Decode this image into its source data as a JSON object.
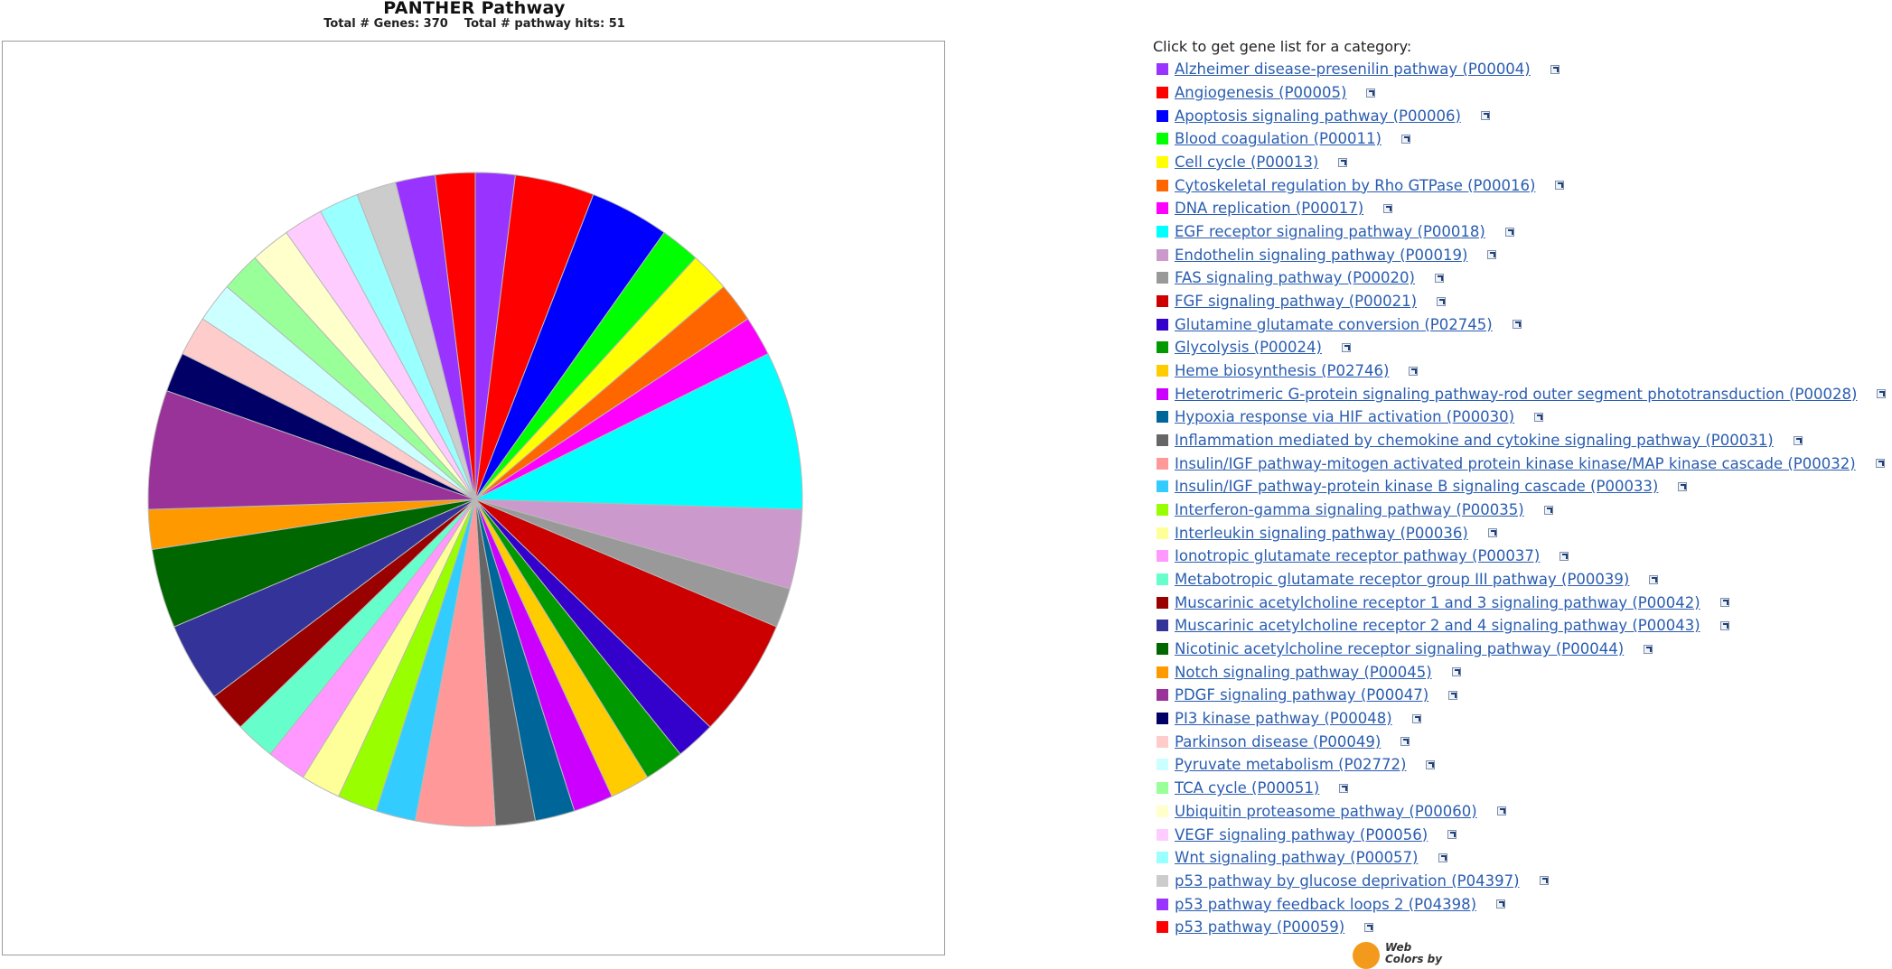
{
  "chart_data": {
    "type": "pie",
    "title": "PANTHER Pathway",
    "subtitle": "Total # Genes: 370    Total # pathway hits: 51",
    "slices": [
      {
        "label": "Alzheimer disease-presenilin pathway (P00004)",
        "value": 1,
        "color": "#9933FF"
      },
      {
        "label": "Angiogenesis (P00005)",
        "value": 2,
        "color": "#FF0000"
      },
      {
        "label": "Apoptosis signaling pathway (P00006)",
        "value": 2,
        "color": "#0000FF"
      },
      {
        "label": "Blood coagulation (P00011)",
        "value": 1,
        "color": "#00FF00"
      },
      {
        "label": "Cell cycle (P00013)",
        "value": 1,
        "color": "#FFFF00"
      },
      {
        "label": "Cytoskeletal regulation by Rho GTPase (P00016)",
        "value": 1,
        "color": "#FF6600"
      },
      {
        "label": "DNA replication (P00017)",
        "value": 1,
        "color": "#FF00FF"
      },
      {
        "label": "EGF receptor signaling pathway (P00018)",
        "value": 4,
        "color": "#00FFFF"
      },
      {
        "label": "Endothelin signaling pathway (P00019)",
        "value": 2,
        "color": "#CC99CC"
      },
      {
        "label": "FAS signaling pathway (P00020)",
        "value": 1,
        "color": "#999999"
      },
      {
        "label": "FGF signaling pathway (P00021)",
        "value": 3,
        "color": "#CC0000"
      },
      {
        "label": "Glutamine glutamate conversion (P02745)",
        "value": 1,
        "color": "#3300CC"
      },
      {
        "label": "Glycolysis (P00024)",
        "value": 1,
        "color": "#009900"
      },
      {
        "label": "Heme biosynthesis (P02746)",
        "value": 1,
        "color": "#FFCC00"
      },
      {
        "label": "Heterotrimeric G-protein signaling pathway-rod outer segment phototransduction (P00028)",
        "value": 1,
        "color": "#CC00FF"
      },
      {
        "label": "Hypoxia response via HIF activation (P00030)",
        "value": 1,
        "color": "#006699"
      },
      {
        "label": "Inflammation mediated by chemokine and cytokine signaling pathway (P00031)",
        "value": 1,
        "color": "#666666"
      },
      {
        "label": "Insulin/IGF pathway-mitogen activated protein kinase kinase/MAP kinase cascade (P00032)",
        "value": 2,
        "color": "#FF9999"
      },
      {
        "label": "Insulin/IGF pathway-protein kinase B signaling cascade (P00033)",
        "value": 1,
        "color": "#33CCFF"
      },
      {
        "label": "Interferon-gamma signaling pathway (P00035)",
        "value": 1,
        "color": "#99FF00"
      },
      {
        "label": "Interleukin signaling pathway (P00036)",
        "value": 1,
        "color": "#FFFF99"
      },
      {
        "label": "Ionotropic glutamate receptor pathway (P00037)",
        "value": 1,
        "color": "#FF99FF"
      },
      {
        "label": "Metabotropic glutamate receptor group III pathway (P00039)",
        "value": 1,
        "color": "#66FFCC"
      },
      {
        "label": "Muscarinic acetylcholine receptor 1 and 3 signaling pathway (P00042)",
        "value": 1,
        "color": "#990000"
      },
      {
        "label": "Muscarinic acetylcholine receptor 2 and 4 signaling pathway (P00043)",
        "value": 2,
        "color": "#333399"
      },
      {
        "label": "Nicotinic acetylcholine receptor signaling pathway (P00044)",
        "value": 2,
        "color": "#006600"
      },
      {
        "label": "Notch signaling pathway (P00045)",
        "value": 1,
        "color": "#FF9900"
      },
      {
        "label": "PDGF signaling pathway (P00047)",
        "value": 3,
        "color": "#993399"
      },
      {
        "label": "PI3 kinase pathway (P00048)",
        "value": 1,
        "color": "#000066"
      },
      {
        "label": "Parkinson disease (P00049)",
        "value": 1,
        "color": "#FFCCCC"
      },
      {
        "label": "Pyruvate metabolism (P02772)",
        "value": 1,
        "color": "#CCFFFF"
      },
      {
        "label": "TCA cycle (P00051)",
        "value": 1,
        "color": "#99FF99"
      },
      {
        "label": "Ubiquitin proteasome pathway (P00060)",
        "value": 1,
        "color": "#FFFFCC"
      },
      {
        "label": "VEGF signaling pathway (P00056)",
        "value": 1,
        "color": "#FFCCFF"
      },
      {
        "label": "Wnt signaling pathway (P00057)",
        "value": 1,
        "color": "#99FFFF"
      },
      {
        "label": "p53 pathway by glucose deprivation (P04397)",
        "value": 1,
        "color": "#CCCCCC"
      },
      {
        "label": "p53 pathway feedback loops 2 (P04398)",
        "value": 1,
        "color": "#9933FF"
      },
      {
        "label": "p53 pathway (P00059)",
        "value": 1,
        "color": "#FF0000"
      }
    ]
  },
  "legend": {
    "heading": "Click to get gene list for a category:",
    "link_icon": "external-link-icon"
  },
  "logo": {
    "line1": "Web",
    "line2": "Colors by"
  }
}
